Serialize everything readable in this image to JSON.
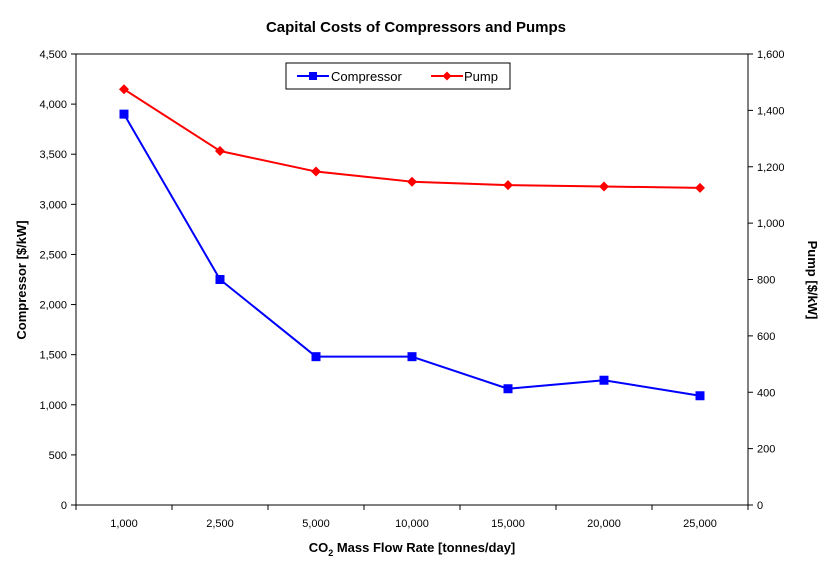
{
  "chart_data": {
    "type": "line",
    "title": "Capital Costs of Compressors and Pumps",
    "xlabel_main": "CO",
    "xlabel_sub": "2",
    "xlabel_rest": " Mass Flow Rate [tonnes/day]",
    "ylabel": "Compressor [$/kW]",
    "y2label": "Pump [$/kW]",
    "categories": [
      "1,000",
      "2,500",
      "5,000",
      "10,000",
      "15,000",
      "20,000",
      "25,000"
    ],
    "ylim": [
      0,
      4500
    ],
    "y2lim": [
      0,
      1600
    ],
    "yticks": [
      "0",
      "500",
      "1,000",
      "1,500",
      "2,000",
      "2,500",
      "3,000",
      "3,500",
      "4,000",
      "4,500"
    ],
    "y2ticks": [
      "0",
      "200",
      "400",
      "600",
      "800",
      "1,000",
      "1,200",
      "1,400",
      "1,600"
    ],
    "grid": false,
    "legend_position": "top-center",
    "series": [
      {
        "name": "Compressor",
        "axis": "left",
        "color": "#0000ff",
        "marker": "square",
        "values": [
          3900,
          2250,
          1480,
          1480,
          1160,
          1245,
          1090
        ]
      },
      {
        "name": "Pump",
        "axis": "right",
        "color": "#ff0000",
        "marker": "diamond",
        "values": [
          1475,
          1256,
          1183,
          1147,
          1135,
          1130,
          1125
        ]
      }
    ]
  }
}
